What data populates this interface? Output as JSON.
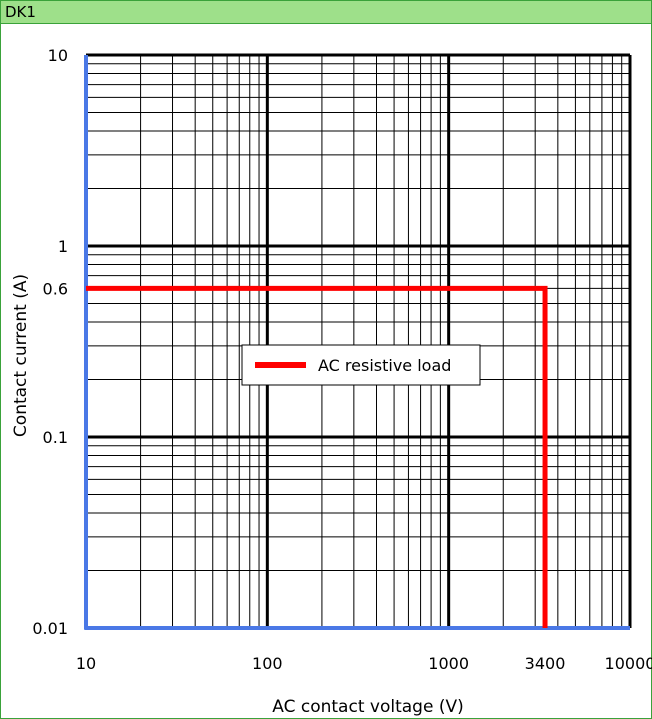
{
  "header": {
    "title": "DK1"
  },
  "colors": {
    "frame": "#3aa23a",
    "header_bg": "#9ee08a",
    "axis": "#4a78e6",
    "series": "#ff0000",
    "grid": "#000000"
  },
  "chart_data": {
    "type": "line",
    "xscale": "log",
    "yscale": "log",
    "xlim": [
      10,
      10000
    ],
    "ylim": [
      0.01,
      10
    ],
    "grid": true,
    "xlabel": "AC contact voltage (V)",
    "ylabel": "Contact current (A)",
    "x_tick_labels": [
      {
        "value": 10,
        "label": "10"
      },
      {
        "value": 100,
        "label": "100"
      },
      {
        "value": 1000,
        "label": "1000"
      },
      {
        "value": 3400,
        "label": "3400"
      },
      {
        "value": 10000,
        "label": "10000"
      }
    ],
    "y_tick_labels": [
      {
        "value": 10,
        "label": "10"
      },
      {
        "value": 1,
        "label": "1"
      },
      {
        "value": 0.6,
        "label": "0.6"
      },
      {
        "value": 0.1,
        "label": "0.1"
      },
      {
        "value": 0.01,
        "label": "0.01"
      }
    ],
    "legend": "center-left",
    "series": [
      {
        "name": "AC resistive load",
        "color": "#ff0000",
        "points": [
          [
            10,
            0.6
          ],
          [
            3400,
            0.6
          ],
          [
            3400,
            0.01
          ]
        ]
      }
    ]
  }
}
